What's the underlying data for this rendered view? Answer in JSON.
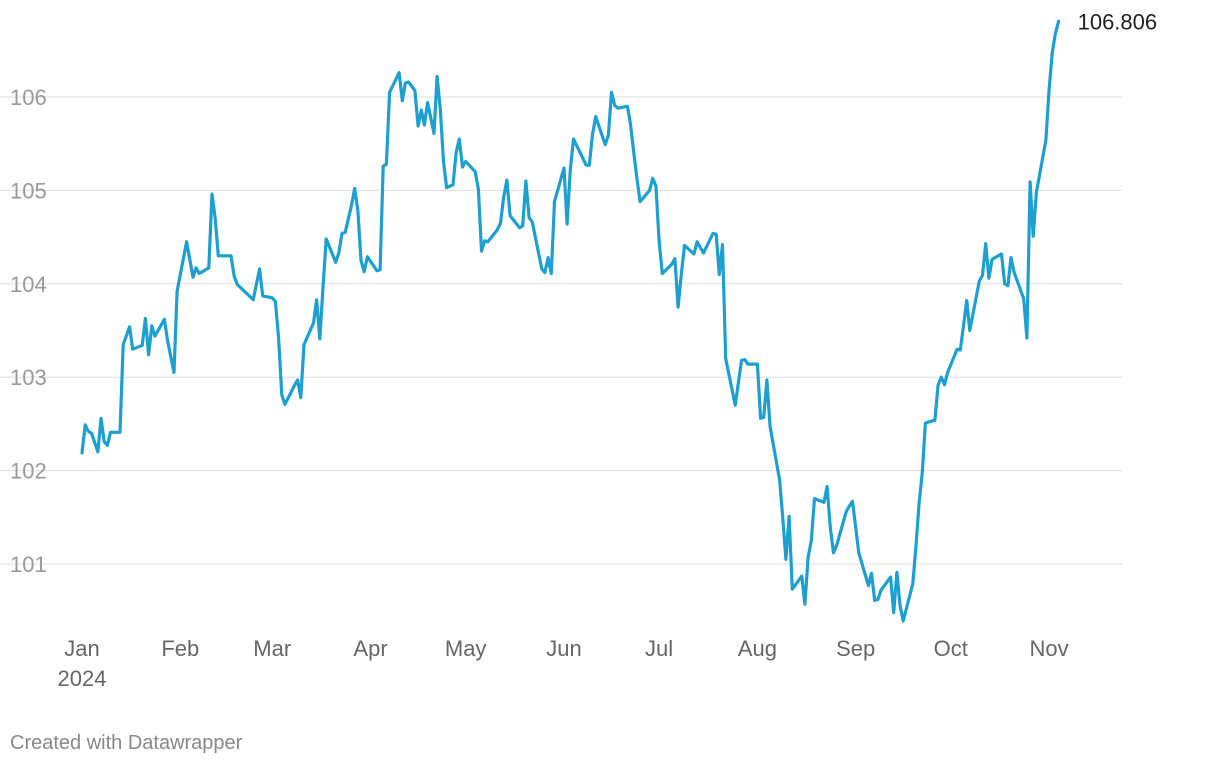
{
  "footer": {
    "credit": "Created with Datawrapper"
  },
  "chart_data": {
    "type": "line",
    "title": "",
    "xlabel": "",
    "ylabel": "",
    "ylim": [
      100.35,
      107.0
    ],
    "xlim": [
      1,
      323
    ],
    "grid": true,
    "legend": "none",
    "color": "#1d9fcf",
    "y_ticks": [
      101,
      102,
      103,
      104,
      105,
      106
    ],
    "x_ticks": [
      {
        "day": 1,
        "label": "Jan",
        "sublabel": "2024"
      },
      {
        "day": 32,
        "label": "Feb"
      },
      {
        "day": 61,
        "label": "Mar"
      },
      {
        "day": 92,
        "label": "Apr"
      },
      {
        "day": 122,
        "label": "May"
      },
      {
        "day": 153,
        "label": "Jun"
      },
      {
        "day": 183,
        "label": "Jul"
      },
      {
        "day": 214,
        "label": "Aug"
      },
      {
        "day": 245,
        "label": "Sep"
      },
      {
        "day": 275,
        "label": "Oct"
      },
      {
        "day": 306,
        "label": "Nov"
      }
    ],
    "end_label": "106.806",
    "series": [
      {
        "points": [
          [
            1,
            102.19
          ],
          [
            2,
            102.49
          ],
          [
            3,
            102.42
          ],
          [
            4,
            102.4
          ],
          [
            6,
            102.2
          ],
          [
            7,
            102.56
          ],
          [
            8,
            102.31
          ],
          [
            9,
            102.27
          ],
          [
            10,
            102.41
          ],
          [
            13,
            102.41
          ],
          [
            14,
            103.35
          ],
          [
            16,
            103.54
          ],
          [
            17,
            103.3
          ],
          [
            20,
            103.34
          ],
          [
            21,
            103.63
          ],
          [
            22,
            103.24
          ],
          [
            23,
            103.55
          ],
          [
            24,
            103.44
          ],
          [
            27,
            103.62
          ],
          [
            28,
            103.39
          ],
          [
            30,
            103.05
          ],
          [
            31,
            103.92
          ],
          [
            34,
            104.45
          ],
          [
            36,
            104.07
          ],
          [
            37,
            104.17
          ],
          [
            38,
            104.11
          ],
          [
            41,
            104.17
          ],
          [
            42,
            104.96
          ],
          [
            43,
            104.7
          ],
          [
            44,
            104.3
          ],
          [
            48,
            104.3
          ],
          [
            49,
            104.08
          ],
          [
            50,
            103.99
          ],
          [
            51,
            103.96
          ],
          [
            55,
            103.83
          ],
          [
            57,
            104.16
          ],
          [
            58,
            103.87
          ],
          [
            61,
            103.85
          ],
          [
            62,
            103.81
          ],
          [
            63,
            103.42
          ],
          [
            64,
            102.81
          ],
          [
            65,
            102.71
          ],
          [
            68,
            102.91
          ],
          [
            69,
            102.97
          ],
          [
            70,
            102.78
          ],
          [
            71,
            103.35
          ],
          [
            74,
            103.58
          ],
          [
            75,
            103.83
          ],
          [
            76,
            103.41
          ],
          [
            77,
            103.96
          ],
          [
            78,
            104.48
          ],
          [
            81,
            104.23
          ],
          [
            82,
            104.33
          ],
          [
            83,
            104.54
          ],
          [
            84,
            104.55
          ],
          [
            86,
            104.84
          ],
          [
            87,
            105.02
          ],
          [
            88,
            104.78
          ],
          [
            89,
            104.25
          ],
          [
            90,
            104.13
          ],
          [
            91,
            104.29
          ],
          [
            94,
            104.14
          ],
          [
            95,
            104.15
          ],
          [
            96,
            105.26
          ],
          [
            97,
            105.28
          ],
          [
            98,
            106.05
          ],
          [
            101,
            106.26
          ],
          [
            102,
            105.96
          ],
          [
            103,
            106.15
          ],
          [
            104,
            106.16
          ],
          [
            106,
            106.07
          ],
          [
            107,
            105.69
          ],
          [
            108,
            105.86
          ],
          [
            109,
            105.7
          ],
          [
            110,
            105.94
          ],
          [
            112,
            105.61
          ],
          [
            113,
            106.22
          ],
          [
            114,
            105.87
          ],
          [
            115,
            105.31
          ],
          [
            116,
            105.03
          ],
          [
            118,
            105.06
          ],
          [
            119,
            105.41
          ],
          [
            120,
            105.55
          ],
          [
            121,
            105.25
          ],
          [
            122,
            105.31
          ],
          [
            125,
            105.2
          ],
          [
            126,
            105.01
          ],
          [
            127,
            104.35
          ],
          [
            128,
            104.46
          ],
          [
            129,
            104.45
          ],
          [
            132,
            104.58
          ],
          [
            133,
            104.65
          ],
          [
            134,
            104.93
          ],
          [
            135,
            105.11
          ],
          [
            136,
            104.73
          ],
          [
            139,
            104.6
          ],
          [
            140,
            104.62
          ],
          [
            141,
            105.1
          ],
          [
            142,
            104.71
          ],
          [
            143,
            104.66
          ],
          [
            146,
            104.16
          ],
          [
            147,
            104.12
          ],
          [
            148,
            104.28
          ],
          [
            149,
            104.11
          ],
          [
            150,
            104.88
          ],
          [
            153,
            105.24
          ],
          [
            154,
            104.64
          ],
          [
            155,
            105.22
          ],
          [
            156,
            105.55
          ],
          [
            160,
            105.27
          ],
          [
            161,
            105.27
          ],
          [
            162,
            105.6
          ],
          [
            163,
            105.79
          ],
          [
            166,
            105.49
          ],
          [
            167,
            105.59
          ],
          [
            168,
            106.05
          ],
          [
            169,
            105.91
          ],
          [
            170,
            105.88
          ],
          [
            173,
            105.9
          ],
          [
            174,
            105.71
          ],
          [
            175,
            105.41
          ],
          [
            176,
            105.13
          ],
          [
            177,
            104.88
          ],
          [
            180,
            105.0
          ],
          [
            181,
            105.13
          ],
          [
            182,
            105.05
          ],
          [
            183,
            104.46
          ],
          [
            184,
            104.11
          ],
          [
            187,
            104.21
          ],
          [
            188,
            104.27
          ],
          [
            189,
            103.75
          ],
          [
            190,
            104.1
          ],
          [
            191,
            104.41
          ],
          [
            194,
            104.32
          ],
          [
            195,
            104.45
          ],
          [
            196,
            104.39
          ],
          [
            197,
            104.33
          ],
          [
            200,
            104.54
          ],
          [
            201,
            104.53
          ],
          [
            202,
            104.1
          ],
          [
            203,
            104.42
          ],
          [
            204,
            103.2
          ],
          [
            207,
            102.7
          ],
          [
            208,
            102.94
          ],
          [
            209,
            103.18
          ],
          [
            210,
            103.19
          ],
          [
            211,
            103.14
          ],
          [
            214,
            103.14
          ],
          [
            215,
            102.56
          ],
          [
            216,
            102.57
          ],
          [
            217,
            102.97
          ],
          [
            218,
            102.47
          ],
          [
            221,
            101.9
          ],
          [
            222,
            101.5
          ],
          [
            223,
            101.05
          ],
          [
            224,
            101.51
          ],
          [
            225,
            100.73
          ],
          [
            228,
            100.87
          ],
          [
            229,
            100.57
          ],
          [
            230,
            101.07
          ],
          [
            231,
            101.25
          ],
          [
            232,
            101.7
          ],
          [
            235,
            101.66
          ],
          [
            236,
            101.83
          ],
          [
            237,
            101.39
          ],
          [
            238,
            101.12
          ],
          [
            239,
            101.2
          ],
          [
            242,
            101.56
          ],
          [
            243,
            101.62
          ],
          [
            244,
            101.67
          ],
          [
            245,
            101.39
          ],
          [
            246,
            101.12
          ],
          [
            249,
            100.77
          ],
          [
            250,
            100.9
          ],
          [
            251,
            100.61
          ],
          [
            252,
            100.62
          ],
          [
            253,
            100.72
          ],
          [
            256,
            100.86
          ],
          [
            257,
            100.48
          ],
          [
            258,
            100.91
          ],
          [
            259,
            100.55
          ],
          [
            260,
            100.39
          ],
          [
            263,
            100.79
          ],
          [
            264,
            101.18
          ],
          [
            265,
            101.65
          ],
          [
            266,
            101.98
          ],
          [
            267,
            102.51
          ],
          [
            270,
            102.54
          ],
          [
            271,
            102.92
          ],
          [
            272,
            103.0
          ],
          [
            273,
            102.92
          ],
          [
            274,
            103.05
          ],
          [
            277,
            103.3
          ],
          [
            278,
            103.29
          ],
          [
            279,
            103.55
          ],
          [
            280,
            103.82
          ],
          [
            281,
            103.5
          ],
          [
            284,
            104.03
          ],
          [
            285,
            104.09
          ],
          [
            286,
            104.43
          ],
          [
            287,
            104.06
          ],
          [
            288,
            104.26
          ],
          [
            291,
            104.32
          ],
          [
            292,
            104.0
          ],
          [
            293,
            103.98
          ],
          [
            294,
            104.28
          ],
          [
            295,
            104.12
          ],
          [
            298,
            103.84
          ],
          [
            299,
            103.42
          ],
          [
            300,
            105.09
          ],
          [
            301,
            104.51
          ],
          [
            302,
            104.98
          ],
          [
            305,
            105.54
          ],
          [
            306,
            106.08
          ],
          [
            307,
            106.48
          ],
          [
            308,
            106.68
          ],
          [
            309,
            106.81
          ]
        ]
      }
    ]
  }
}
